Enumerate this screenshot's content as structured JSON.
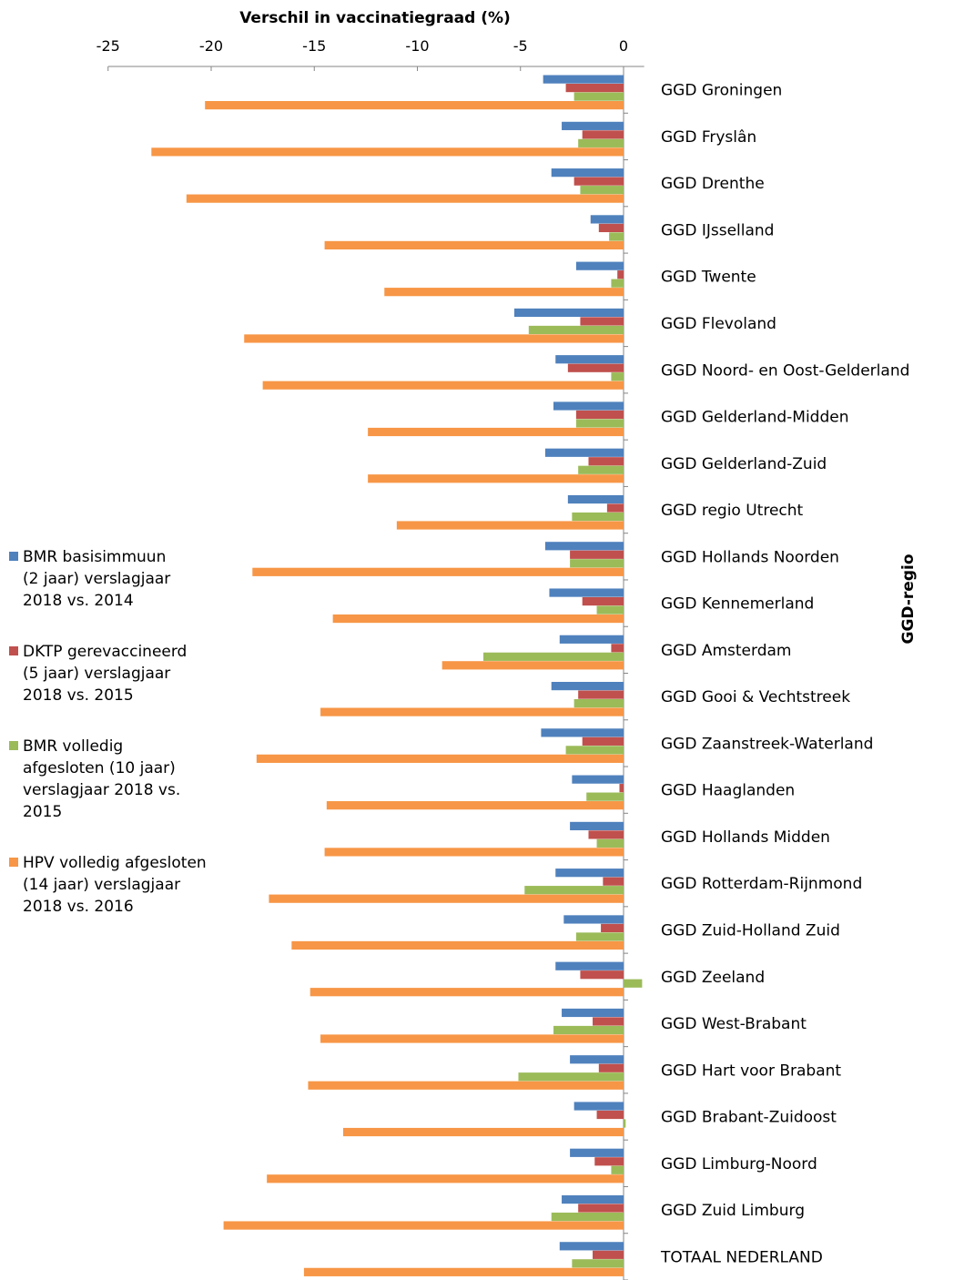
{
  "chart_data": {
    "type": "bar",
    "orientation": "horizontal",
    "title": "Verschil in vaccinatiegraad (%)",
    "ylabel": "GGD-regio",
    "xlim": [
      -25,
      1
    ],
    "xticks": [
      -25,
      -20,
      -15,
      -10,
      -5,
      0
    ],
    "legend_position": "left",
    "grid": false,
    "categories": [
      "GGD Groningen",
      "GGD Fryslân",
      "GGD Drenthe",
      "GGD IJsselland",
      "GGD Twente",
      "GGD Flevoland",
      "GGD Noord- en Oost-Gelderland",
      "GGD Gelderland-Midden",
      "GGD Gelderland-Zuid",
      "GGD regio Utrecht",
      "GGD Hollands Noorden",
      "GGD Kennemerland",
      "GGD Amsterdam",
      "GGD Gooi & Vechtstreek",
      "GGD Zaanstreek-Waterland",
      "GGD Haaglanden",
      "GGD Hollands Midden",
      "GGD Rotterdam-Rijnmond",
      "GGD Zuid-Holland Zuid",
      "GGD Zeeland",
      "GGD West-Brabant",
      "GGD Hart voor Brabant",
      "GGD Brabant-Zuidoost",
      "GGD Limburg-Noord",
      "GGD Zuid Limburg",
      "TOTAAL NEDERLAND"
    ],
    "series": [
      {
        "name": "BMR basisimmuun\n(2 jaar) verslagjaar\n2018 vs. 2014",
        "color": "#4F81BD",
        "values": [
          -3.9,
          -3.0,
          -3.5,
          -1.6,
          -2.3,
          -5.3,
          -3.3,
          -3.4,
          -3.8,
          -2.7,
          -3.8,
          -3.6,
          -3.1,
          -3.5,
          -4.0,
          -2.5,
          -2.6,
          -3.3,
          -2.9,
          -3.3,
          -3.0,
          -2.6,
          -2.4,
          -2.6,
          -3.0,
          -3.1
        ]
      },
      {
        "name": "DKTP gerevaccineerd\n(5 jaar) verslagjaar\n2018 vs. 2015",
        "color": "#C0504D",
        "values": [
          -2.8,
          -2.0,
          -2.4,
          -1.2,
          -0.3,
          -2.1,
          -2.7,
          -2.3,
          -1.7,
          -0.8,
          -2.6,
          -2.0,
          -0.6,
          -2.2,
          -2.0,
          -0.2,
          -1.7,
          -1.0,
          -1.1,
          -2.1,
          -1.5,
          -1.2,
          -1.3,
          -1.4,
          -2.2,
          -1.5
        ]
      },
      {
        "name": "BMR volledig\nafgesloten (10 jaar)\nverslagjaar 2018 vs.\n2015",
        "color": "#9BBB59",
        "values": [
          -2.4,
          -2.2,
          -2.1,
          -0.7,
          -0.6,
          -4.6,
          -0.6,
          -2.3,
          -2.2,
          -2.5,
          -2.6,
          -1.3,
          -6.8,
          -2.4,
          -2.8,
          -1.8,
          -1.3,
          -4.8,
          -2.3,
          0.9,
          -3.4,
          -5.1,
          0.1,
          -0.6,
          -3.5,
          -2.5
        ]
      },
      {
        "name": "HPV volledig afgesloten\n(14 jaar) verslagjaar\n2018 vs. 2016",
        "color": "#F79646",
        "values": [
          -20.3,
          -22.9,
          -21.2,
          -14.5,
          -11.6,
          -18.4,
          -17.5,
          -12.4,
          -12.4,
          -11.0,
          -18.0,
          -14.1,
          -8.8,
          -14.7,
          -17.8,
          -14.4,
          -14.5,
          -17.2,
          -16.1,
          -15.2,
          -14.7,
          -15.3,
          -13.6,
          -17.3,
          -19.4,
          -15.5
        ]
      }
    ]
  }
}
